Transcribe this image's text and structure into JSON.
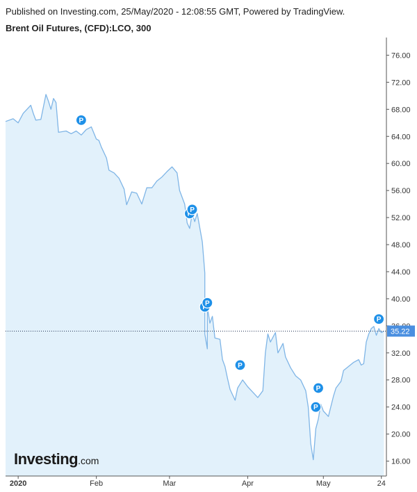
{
  "header": {
    "published": "Published on Investing.com, 25/May/2020 - 12:08:55 GMT, Powered by TradingView.",
    "title": "Brent Oil Futures, (CFD):LCO, 300"
  },
  "logo": {
    "main": "Investing",
    "suffix": ".com"
  },
  "colors": {
    "line": "#7fb5e6",
    "area": "#e2f1fb",
    "marker": "#1e90e8",
    "last_badge": "#4a8fe0",
    "axis": "#555555",
    "dotted": "#223355"
  },
  "chart_data": {
    "type": "area",
    "title": "Brent Oil Futures, (CFD):LCO, 300",
    "xlabel": "",
    "ylabel": "",
    "ylim": [
      13.8,
      78.2
    ],
    "y_ticks": [
      16,
      20,
      24,
      28,
      32,
      36,
      40,
      44,
      48,
      52,
      56,
      60,
      64,
      68,
      72,
      76
    ],
    "y_tick_labels": [
      "16.00",
      "20.00",
      "24.00",
      "28.00",
      "32.00",
      "36.00",
      "40.00",
      "44.00",
      "48.00",
      "52.00",
      "56.00",
      "60.00",
      "64.00",
      "68.00",
      "72.00",
      "76.00"
    ],
    "x_range": [
      "2019-12-27",
      "2020-05-26"
    ],
    "x_ticks": [
      {
        "date": "2020-01-01",
        "label": "2020",
        "bold": true
      },
      {
        "date": "2020-02-01",
        "label": "Feb",
        "bold": false
      },
      {
        "date": "2020-03-01",
        "label": "Mar",
        "bold": false
      },
      {
        "date": "2020-04-01",
        "label": "Apr",
        "bold": false
      },
      {
        "date": "2020-05-01",
        "label": "May",
        "bold": false
      },
      {
        "date": "2020-05-24",
        "label": "24",
        "bold": false
      }
    ],
    "last_value": 35.22,
    "last_value_label": "35.22",
    "grid": false,
    "series": [
      {
        "points": [
          [
            "2019-12-27",
            66.2
          ],
          [
            "2019-12-30",
            66.6
          ],
          [
            "2020-01-01",
            66.0
          ],
          [
            "2020-01-03",
            67.4
          ],
          [
            "2020-01-06",
            68.6
          ],
          [
            "2020-01-07",
            67.4
          ],
          [
            "2020-01-08",
            66.4
          ],
          [
            "2020-01-10",
            66.5
          ],
          [
            "2020-01-12",
            70.2
          ],
          [
            "2020-01-13",
            69.2
          ],
          [
            "2020-01-14",
            68.0
          ],
          [
            "2020-01-15",
            69.6
          ],
          [
            "2020-01-16",
            69.0
          ],
          [
            "2020-01-17",
            64.6
          ],
          [
            "2020-01-20",
            64.8
          ],
          [
            "2020-01-22",
            64.4
          ],
          [
            "2020-01-24",
            64.8
          ],
          [
            "2020-01-26",
            64.2
          ],
          [
            "2020-01-28",
            65.0
          ],
          [
            "2020-01-30",
            65.4
          ],
          [
            "2020-02-01",
            63.6
          ],
          [
            "2020-02-02",
            63.4
          ],
          [
            "2020-02-03",
            62.4
          ],
          [
            "2020-02-05",
            60.8
          ],
          [
            "2020-02-06",
            59.0
          ],
          [
            "2020-02-08",
            58.6
          ],
          [
            "2020-02-10",
            57.8
          ],
          [
            "2020-02-12",
            56.2
          ],
          [
            "2020-02-13",
            53.9
          ],
          [
            "2020-02-15",
            55.8
          ],
          [
            "2020-02-17",
            55.6
          ],
          [
            "2020-02-19",
            54.0
          ],
          [
            "2020-02-21",
            56.4
          ],
          [
            "2020-02-23",
            56.4
          ],
          [
            "2020-02-25",
            57.4
          ],
          [
            "2020-02-27",
            58.0
          ],
          [
            "2020-02-29",
            58.8
          ],
          [
            "2020-03-02",
            59.5
          ],
          [
            "2020-03-04",
            58.6
          ],
          [
            "2020-03-05",
            56.0
          ],
          [
            "2020-03-07",
            54.0
          ],
          [
            "2020-03-08",
            51.2
          ],
          [
            "2020-03-09",
            50.4
          ],
          [
            "2020-03-10",
            52.6
          ],
          [
            "2020-03-11",
            51.4
          ],
          [
            "2020-03-12",
            52.6
          ],
          [
            "2020-03-14",
            48.4
          ],
          [
            "2020-03-15",
            43.8
          ],
          [
            "2020-03-15",
            34.8
          ],
          [
            "2020-03-16",
            32.6
          ],
          [
            "2020-03-16",
            38.8
          ],
          [
            "2020-03-17",
            36.4
          ],
          [
            "2020-03-18",
            37.4
          ],
          [
            "2020-03-19",
            34.2
          ],
          [
            "2020-03-21",
            34.0
          ],
          [
            "2020-03-22",
            31.0
          ],
          [
            "2020-03-23",
            30.0
          ],
          [
            "2020-03-24",
            28.2
          ],
          [
            "2020-03-25",
            26.6
          ],
          [
            "2020-03-27",
            25.0
          ],
          [
            "2020-03-28",
            26.8
          ],
          [
            "2020-03-30",
            28.0
          ],
          [
            "2020-04-01",
            27.0
          ],
          [
            "2020-04-03",
            26.2
          ],
          [
            "2020-04-05",
            25.4
          ],
          [
            "2020-04-07",
            26.4
          ],
          [
            "2020-04-08",
            32.0
          ],
          [
            "2020-04-09",
            34.8
          ],
          [
            "2020-04-10",
            33.6
          ],
          [
            "2020-04-12",
            35.0
          ],
          [
            "2020-04-13",
            32.0
          ],
          [
            "2020-04-15",
            33.4
          ],
          [
            "2020-04-16",
            31.4
          ],
          [
            "2020-04-18",
            29.8
          ],
          [
            "2020-04-20",
            28.6
          ],
          [
            "2020-04-22",
            28.0
          ],
          [
            "2020-04-24",
            26.4
          ],
          [
            "2020-04-25",
            24.0
          ],
          [
            "2020-04-26",
            18.6
          ],
          [
            "2020-04-27",
            16.2
          ],
          [
            "2020-04-28",
            20.8
          ],
          [
            "2020-04-29",
            22.2
          ],
          [
            "2020-04-30",
            24.4
          ],
          [
            "2020-05-01",
            23.4
          ],
          [
            "2020-05-03",
            22.6
          ],
          [
            "2020-05-05",
            25.6
          ],
          [
            "2020-05-06",
            26.8
          ],
          [
            "2020-05-08",
            27.8
          ],
          [
            "2020-05-09",
            29.4
          ],
          [
            "2020-05-11",
            30.0
          ],
          [
            "2020-05-13",
            30.6
          ],
          [
            "2020-05-15",
            31.0
          ],
          [
            "2020-05-16",
            30.2
          ],
          [
            "2020-05-17",
            30.4
          ],
          [
            "2020-05-18",
            33.6
          ],
          [
            "2020-05-19",
            34.8
          ],
          [
            "2020-05-20",
            35.6
          ],
          [
            "2020-05-21",
            35.9
          ],
          [
            "2020-05-22",
            34.6
          ],
          [
            "2020-05-23",
            35.6
          ],
          [
            "2020-05-24",
            35.0
          ],
          [
            "2020-05-25",
            35.22
          ]
        ]
      }
    ],
    "markers": [
      {
        "date": "2020-01-26",
        "value": 66.4,
        "label": "P"
      },
      {
        "date": "2020-03-09",
        "value": 52.6,
        "label": "P"
      },
      {
        "date": "2020-03-10",
        "value": 53.2,
        "label": "P"
      },
      {
        "date": "2020-03-15",
        "value": 38.8,
        "label": "P"
      },
      {
        "date": "2020-03-16",
        "value": 39.4,
        "label": "P"
      },
      {
        "date": "2020-03-29",
        "value": 30.2,
        "label": "P"
      },
      {
        "date": "2020-04-29",
        "value": 26.8,
        "label": "P"
      },
      {
        "date": "2020-04-28",
        "value": 24.0,
        "label": "P"
      },
      {
        "date": "2020-05-23",
        "value": 37.0,
        "label": "P"
      }
    ]
  }
}
